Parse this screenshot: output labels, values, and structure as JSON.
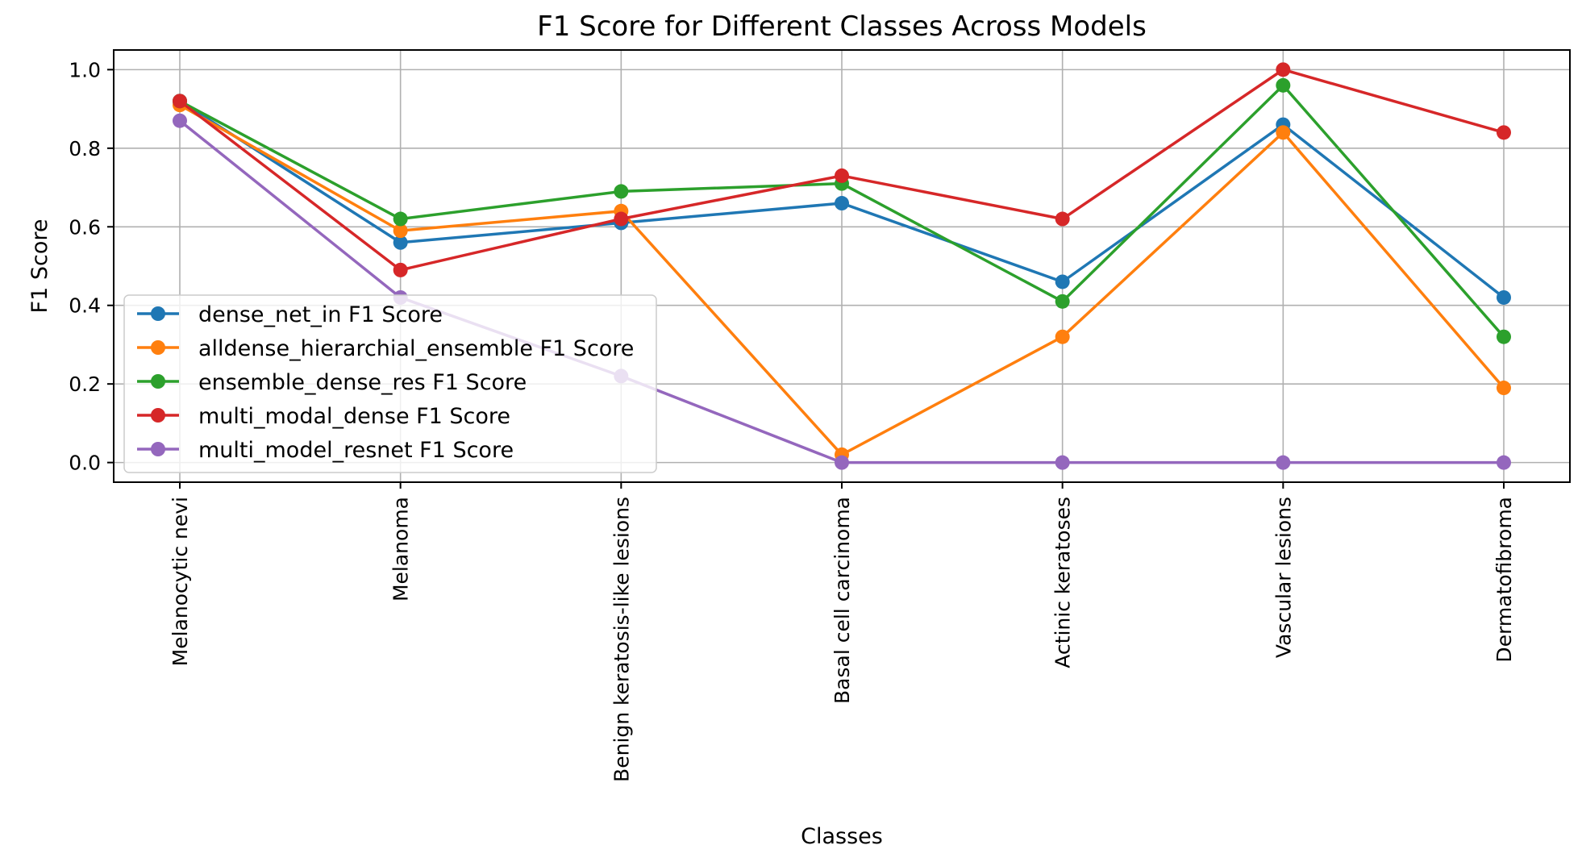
{
  "chart_data": {
    "type": "line",
    "title": "F1 Score for Different Classes Across Models",
    "xlabel": "Classes",
    "ylabel": "F1 Score",
    "ylim": [
      -0.05,
      1.05
    ],
    "yticks": [
      0.0,
      0.2,
      0.4,
      0.6,
      0.8,
      1.0
    ],
    "ytick_labels": [
      "0.0",
      "0.2",
      "0.4",
      "0.6",
      "0.8",
      "1.0"
    ],
    "grid": true,
    "legend_position": "center-left",
    "categories": [
      "Melanocytic nevi",
      "Melanoma",
      "Benign keratosis-like lesions",
      "Basal cell carcinoma",
      "Actinic keratoses",
      "Vascular lesions",
      "Dermatofibroma"
    ],
    "series": [
      {
        "name": "dense_net_in F1 Score",
        "color": "#1f77b4",
        "values": [
          0.92,
          0.56,
          0.61,
          0.66,
          0.46,
          0.86,
          0.42
        ]
      },
      {
        "name": "alldense_hierarchial_ensemble F1 Score",
        "color": "#ff7f0e",
        "values": [
          0.91,
          0.59,
          0.64,
          0.02,
          0.32,
          0.84,
          0.19
        ]
      },
      {
        "name": "ensemble_dense_res F1 Score",
        "color": "#2ca02c",
        "values": [
          0.92,
          0.62,
          0.69,
          0.71,
          0.41,
          0.96,
          0.32
        ]
      },
      {
        "name": "multi_modal_dense F1 Score",
        "color": "#d62728",
        "values": [
          0.92,
          0.49,
          0.62,
          0.73,
          0.62,
          1.0,
          0.84
        ]
      },
      {
        "name": "multi_model_resnet F1 Score",
        "color": "#9467bd",
        "values": [
          0.87,
          0.42,
          0.22,
          0.0,
          0.0,
          0.0,
          0.0
        ]
      }
    ]
  }
}
